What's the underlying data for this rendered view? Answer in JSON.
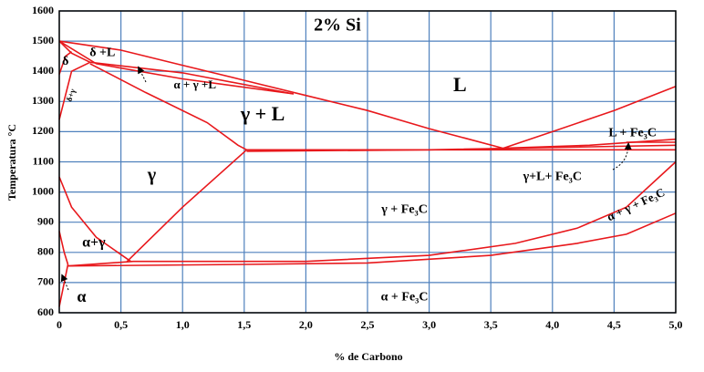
{
  "chart_data": {
    "type": "line",
    "title": "2% Si",
    "x_label": "% de Carbono",
    "y_label": "Temperatura °C",
    "xlim": [
      0,
      5
    ],
    "ylim": [
      600,
      1600
    ],
    "xticks": [
      0,
      {
        "value": 0.5,
        "label": "0,5"
      },
      {
        "value": 1,
        "label": "1,0"
      },
      {
        "value": 1.5,
        "label": "1,5"
      },
      {
        "value": 2,
        "label": "2,0"
      },
      {
        "value": 2.5,
        "label": "2,5"
      },
      {
        "value": 3,
        "label": "3,0"
      },
      {
        "value": 3.5,
        "label": "3,5"
      },
      {
        "value": 4,
        "label": "4,0"
      },
      {
        "value": 4.5,
        "label": "4,5"
      },
      {
        "value": 5,
        "label": "5,0"
      }
    ],
    "yticks": [
      600,
      700,
      800,
      900,
      1000,
      1100,
      1200,
      1300,
      1400,
      1500,
      1600
    ],
    "grid": true,
    "grid_color": "#4f81bd",
    "annotations": [
      "δ +L",
      "δ",
      "δ+γ",
      "α + γ +L",
      "L",
      "γ + L",
      "L + Fe₃C",
      "γ",
      "γ+L+ Fe₃C",
      "γ + Fe₃C",
      "α+γ",
      "α + γ + Fe₃C",
      "α",
      "α + Fe₃C"
    ],
    "series": [
      {
        "color": "#e8181c",
        "x": [
          0,
          0.5,
          1.0,
          1.5,
          2.0,
          2.5,
          3.0,
          3.6
        ],
        "values": [
          1500,
          1470,
          1420,
          1370,
          1320,
          1270,
          1210,
          1145
        ]
      },
      {
        "color": "#e8181c",
        "x": [
          0,
          0.3,
          1.0,
          1.9
        ],
        "values": [
          1500,
          1425,
          1375,
          1325
        ]
      },
      {
        "color": "#e8181c",
        "x": [
          0.25,
          1.0,
          1.9
        ],
        "values": [
          1430,
          1395,
          1325
        ]
      },
      {
        "color": "#e8181c",
        "x": [
          0.25,
          0.7,
          1.2,
          1.45,
          1.52
        ],
        "values": [
          1425,
          1330,
          1230,
          1155,
          1140
        ]
      },
      {
        "color": "#e8181c",
        "x": [
          0,
          0.1,
          0.25
        ],
        "values": [
          1500,
          1460,
          1430
        ]
      },
      {
        "color": "#e8181c",
        "x": [
          0,
          0.1,
          0.25
        ],
        "values": [
          1240,
          1400,
          1430
        ]
      },
      {
        "color": "#e8181c",
        "x": [
          0,
          0.05,
          0.1
        ],
        "values": [
          1390,
          1450,
          1465
        ]
      },
      {
        "color": "#e8181c",
        "x": [
          1.52,
          5.0
        ],
        "values": [
          1140,
          1140
        ]
      },
      {
        "color": "#e8181c",
        "x": [
          1.52,
          3.0,
          5.0
        ],
        "values": [
          1135,
          1140,
          1155
        ]
      },
      {
        "color": "#e8181c",
        "x": [
          3.6,
          4.3,
          5.0
        ],
        "values": [
          1145,
          1155,
          1175
        ]
      },
      {
        "color": "#e8181c",
        "x": [
          4.6,
          5.0
        ],
        "values": [
          1165,
          1165
        ]
      },
      {
        "color": "#e8181c",
        "x": [
          3.6,
          4.0,
          4.5,
          5.0
        ],
        "values": [
          1145,
          1200,
          1270,
          1350
        ]
      },
      {
        "color": "#e8181c",
        "x": [
          1.52,
          1.0,
          0.55
        ],
        "values": [
          1140,
          950,
          770
        ]
      },
      {
        "color": "#e8181c",
        "x": [
          0,
          0.1,
          0.3,
          0.58
        ],
        "values": [
          1050,
          950,
          850,
          770
        ]
      },
      {
        "color": "#e8181c",
        "x": [
          0,
          0.04,
          0.07
        ],
        "values": [
          870,
          800,
          760
        ]
      },
      {
        "color": "#e8181c",
        "x": [
          0.07,
          0.6,
          2.0,
          3.0,
          3.7,
          4.2,
          4.6,
          5.0
        ],
        "values": [
          755,
          770,
          770,
          790,
          830,
          880,
          950,
          1100
        ]
      },
      {
        "color": "#e8181c",
        "x": [
          0.07,
          1.5,
          2.5,
          3.5,
          4.2,
          4.6,
          5.0
        ],
        "values": [
          755,
          760,
          765,
          790,
          830,
          860,
          930
        ]
      },
      {
        "color": "#e8181c",
        "x": [
          0,
          0.05,
          0.07
        ],
        "values": [
          620,
          720,
          760
        ]
      }
    ]
  }
}
